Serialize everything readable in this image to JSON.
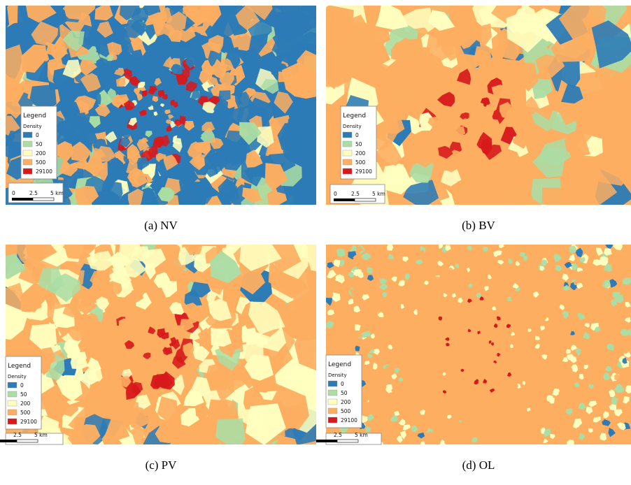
{
  "panels": [
    {
      "caption": "(a) NV",
      "legend": {
        "title": "Legend",
        "subtitle": "Density",
        "items": [
          {
            "label": "0",
            "color": "#2c7bb6"
          },
          {
            "label": "50",
            "color": "#abdda4"
          },
          {
            "label": "200",
            "color": "#ffffbf"
          },
          {
            "label": "500",
            "color": "#fdae61"
          },
          {
            "label": "29100",
            "color": "#d7191c"
          }
        ]
      },
      "scale": [
        "0",
        "2.5",
        "5 km"
      ]
    },
    {
      "caption": "(b) BV",
      "legend": {
        "title": "Legend",
        "subtitle": "Density",
        "items": [
          {
            "label": "0",
            "color": "#2c7bb6"
          },
          {
            "label": "50",
            "color": "#abdda4"
          },
          {
            "label": "200",
            "color": "#ffffbf"
          },
          {
            "label": "500",
            "color": "#fdae61"
          },
          {
            "label": "29100",
            "color": "#d7191c"
          }
        ]
      },
      "scale": [
        "0",
        "2.5",
        "5 km"
      ]
    },
    {
      "caption": "(c) PV",
      "legend": {
        "title": "Legend",
        "subtitle": "Density",
        "items": [
          {
            "label": "0",
            "color": "#2c7bb6"
          },
          {
            "label": "50",
            "color": "#abdda4"
          },
          {
            "label": "200",
            "color": "#ffffbf"
          },
          {
            "label": "500",
            "color": "#fdae61"
          },
          {
            "label": "29100",
            "color": "#d7191c"
          }
        ]
      },
      "scale": [
        "2.5",
        "5 km"
      ]
    },
    {
      "caption": "(d) OL",
      "legend": {
        "title": "Legend",
        "subtitle": "Density",
        "items": [
          {
            "label": "0",
            "color": "#2c7bb6"
          },
          {
            "label": "50",
            "color": "#abdda4"
          },
          {
            "label": "200",
            "color": "#ffffbf"
          },
          {
            "label": "500",
            "color": "#fdae61"
          },
          {
            "label": "29100",
            "color": "#d7191c"
          }
        ]
      },
      "scale": [
        "2.5",
        "5 km"
      ]
    }
  ]
}
